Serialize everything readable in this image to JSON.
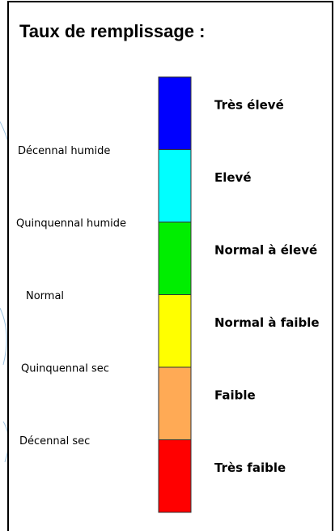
{
  "title": "Taux de remplissage :",
  "levels": [
    {
      "label": "Très élevé",
      "color": "#0000ff"
    },
    {
      "label": "Elevé",
      "color": "#00ffff"
    },
    {
      "label": "Normal à élevé",
      "color": "#00ee00"
    },
    {
      "label": "Normal à faible",
      "color": "#ffff00"
    },
    {
      "label": "Faible",
      "color": "#ffaa55"
    },
    {
      "label": "Très faible",
      "color": "#ff0000"
    }
  ],
  "thresholds": [
    "Décennal humide",
    "Quinquennal humide",
    "Normal",
    "Quinquennal sec",
    "Décennal sec"
  ]
}
